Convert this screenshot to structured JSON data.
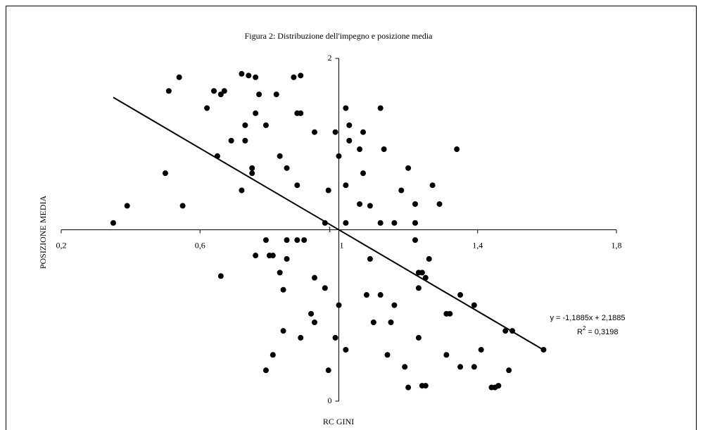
{
  "chart_data": {
    "type": "scatter",
    "title": "Figura 2: Distribuzione dell'impegno e posizione media",
    "x_label": "RC GINI",
    "y_label": "POSIZIONE MEDIA",
    "color": "#000000",
    "xlim": [
      0.2,
      1.8
    ],
    "ylim": [
      0,
      2
    ],
    "xticks": [
      {
        "value": 0.2,
        "label": "0,2"
      },
      {
        "value": 0.6,
        "label": "0,6"
      },
      1,
      {
        "value": 1.4,
        "label": "1,4"
      },
      {
        "value": 1.8,
        "label": "1,8"
      }
    ],
    "yticks": [
      0,
      1,
      2
    ],
    "axis_cross": [
      1,
      1
    ],
    "x": [
      0.35,
      0.39,
      0.5,
      0.51,
      0.54,
      0.55,
      0.62,
      0.64,
      0.65,
      0.66,
      0.67,
      0.66,
      0.69,
      0.72,
      0.72,
      0.73,
      0.73,
      0.74,
      0.75,
      0.75,
      0.76,
      0.76,
      0.77,
      0.79,
      0.79,
      0.76,
      0.8,
      0.81,
      0.82,
      0.83,
      0.83,
      0.84,
      0.85,
      0.85,
      0.84,
      0.85,
      0.87,
      0.88,
      0.89,
      0.88,
      0.88,
      0.89,
      0.9,
      0.89,
      0.81,
      0.79,
      0.93,
      0.93,
      0.92,
      0.93,
      0.96,
      0.96,
      0.97,
      0.97,
      0.99,
      0.99,
      1.0,
      1.0,
      1.02,
      1.02,
      1.02,
      1.02,
      1.03,
      1.03,
      1.06,
      1.06,
      1.07,
      1.07,
      1.09,
      1.09,
      1.08,
      1.1,
      1.12,
      1.12,
      1.13,
      1.12,
      1.14,
      1.16,
      1.16,
      1.15,
      1.18,
      1.19,
      1.2,
      1.2,
      1.22,
      1.22,
      1.22,
      1.23,
      1.23,
      1.23,
      1.24,
      1.24,
      1.25,
      1.25,
      1.26,
      1.27,
      1.29,
      1.31,
      1.32,
      1.31,
      1.34,
      1.35,
      1.35,
      1.39,
      1.39,
      1.41,
      1.44,
      1.45,
      1.46,
      1.48,
      1.49,
      1.5,
      1.59
    ],
    "values": [
      1.04,
      1.14,
      1.33,
      1.81,
      1.89,
      1.14,
      1.71,
      1.81,
      1.43,
      1.79,
      1.81,
      0.73,
      1.52,
      1.91,
      1.23,
      1.61,
      1.52,
      1.9,
      1.36,
      1.33,
      1.89,
      1.68,
      1.79,
      1.61,
      0.94,
      0.85,
      0.85,
      0.85,
      1.79,
      0.75,
      1.43,
      0.65,
      1.36,
      0.94,
      0.41,
      0.83,
      1.89,
      1.68,
      1.68,
      1.26,
      0.94,
      1.9,
      0.94,
      0.37,
      0.27,
      0.18,
      1.57,
      0.72,
      0.51,
      0.46,
      1.04,
      0.66,
      1.23,
      0.18,
      0.37,
      1.57,
      1.43,
      0.56,
      1.71,
      1.26,
      1.04,
      0.3,
      1.61,
      1.52,
      1.47,
      1.15,
      1.57,
      1.33,
      1.14,
      0.83,
      0.62,
      0.46,
      0.62,
      1.71,
      1.47,
      1.04,
      0.27,
      1.04,
      0.56,
      0.46,
      1.23,
      0.2,
      1.36,
      0.08,
      1.15,
      0.94,
      1.04,
      0.75,
      0.37,
      0.66,
      0.75,
      0.09,
      0.09,
      0.72,
      0.83,
      1.26,
      1.15,
      0.51,
      0.51,
      0.27,
      1.47,
      0.62,
      0.2,
      0.56,
      0.2,
      0.3,
      0.08,
      0.08,
      0.09,
      0.41,
      0.18,
      0.41,
      0.3
    ],
    "trendline": {
      "slope": -1.1885,
      "intercept": 2.1885,
      "xlim": [
        0.35,
        1.59
      ],
      "equation": "y = -1,1885x + 2,1885",
      "r2_label": "R",
      "r2_sup": "2",
      "r2_value": "= 0,3198"
    }
  }
}
